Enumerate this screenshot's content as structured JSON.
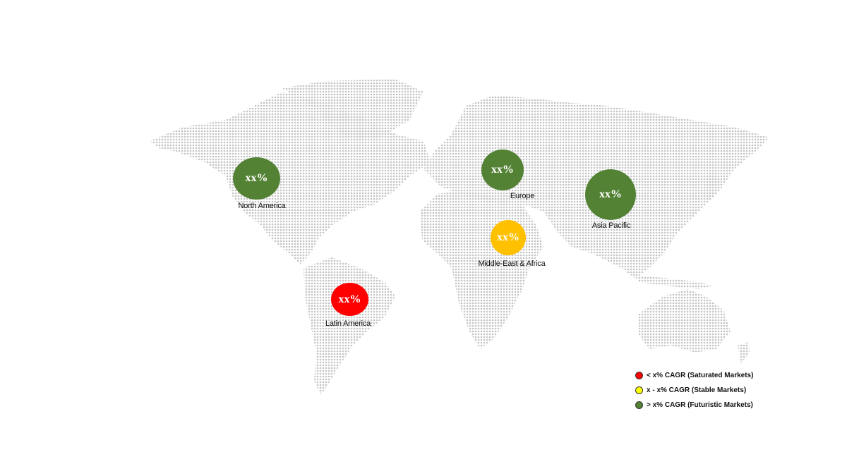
{
  "colors": {
    "land_dots": "#c8c8c8",
    "saturated": "#ff0000",
    "stable": "#ffff00",
    "stable_bubble": "#ffc000",
    "futuristic": "#548235"
  },
  "regions": [
    {
      "name": "North America",
      "value": "xx%",
      "category": "futuristic"
    },
    {
      "name": "Europe",
      "value": "xx%",
      "category": "futuristic"
    },
    {
      "name": "Asia Pacific",
      "value": "xx%",
      "category": "futuristic"
    },
    {
      "name": "Middle-East & Africa",
      "value": "xx%",
      "category": "stable"
    },
    {
      "name": "Latin America",
      "value": "xx%",
      "category": "saturated"
    }
  ],
  "legend": [
    {
      "label": "< x% CAGR (Saturated Markets)",
      "category": "saturated"
    },
    {
      "label": "x - x% CAGR (Stable Markets)",
      "category": "stable"
    },
    {
      "label": "> x% CAGR (Futuristic Markets)",
      "category": "futuristic"
    }
  ]
}
